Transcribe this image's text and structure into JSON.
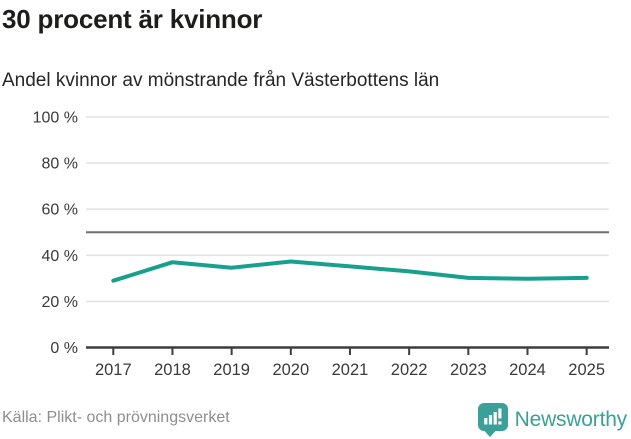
{
  "header": {
    "title": "30 procent är kvinnor",
    "subtitle": "Andel kvinnor av mönstrande från Västerbottens län"
  },
  "footer": {
    "source": "Källa: Plikt- och prövningsverket",
    "brand_name": "Newsworthy",
    "brand_icon": "newsworthy-speech-bubble-bar-chart-icon"
  },
  "colors": {
    "line": "#18A08E",
    "brand_teal": "#3AA098",
    "grid": "#E4E4E4",
    "reference_line": "#6F6F6F",
    "axis": "#3D3D3D",
    "axis_text": "#3A3A3A",
    "title_text": "#1D1D1B",
    "muted_text": "#8E8E8E"
  },
  "chart_data": {
    "type": "line",
    "title": "30 procent är kvinnor",
    "subtitle": "Andel kvinnor av mönstrande från Västerbottens län",
    "x": [
      "2017",
      "2018",
      "2019",
      "2020",
      "2021",
      "2022",
      "2023",
      "2024",
      "2025"
    ],
    "series": [
      {
        "name": "Andel kvinnor av mönstrande",
        "values": [
          29,
          37,
          34.6,
          37.3,
          35.2,
          33,
          30.2,
          29.8,
          30.2
        ]
      }
    ],
    "ylim": [
      0,
      100
    ],
    "y_ticks": [
      0,
      20,
      40,
      60,
      80,
      100
    ],
    "y_tick_labels": [
      "0 %",
      "20 %",
      "40 %",
      "60 %",
      "80 %",
      "100 %"
    ],
    "reference_line_y": 50,
    "grid": "horizontal",
    "legend": "none"
  }
}
